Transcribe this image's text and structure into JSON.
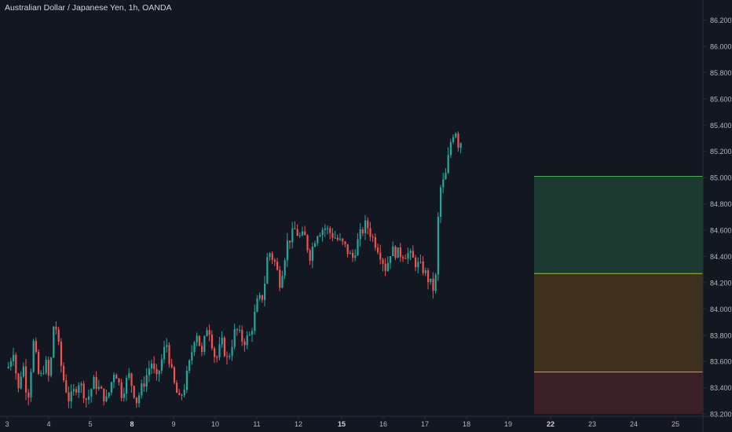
{
  "chart_title": "Australian Dollar / Japanese Yen, 1h, OANDA",
  "chart_data": {
    "type": "candlestick",
    "title": "Australian Dollar / Japanese Yen, 1h, OANDA",
    "symbol": "AUDJPY",
    "timeframe": "1h",
    "source": "OANDA",
    "ylim": [
      83.2,
      86.3
    ],
    "y_ticks": [
      "83.200",
      "83.400",
      "83.600",
      "83.800",
      "84.000",
      "84.200",
      "84.400",
      "84.600",
      "84.800",
      "85.000",
      "85.200",
      "85.400",
      "85.600",
      "85.800",
      "86.000",
      "86.200"
    ],
    "x_ticks": [
      {
        "label": "3",
        "bold": false
      },
      {
        "label": "4",
        "bold": false
      },
      {
        "label": "5",
        "bold": false
      },
      {
        "label": "8",
        "bold": true
      },
      {
        "label": "9",
        "bold": false
      },
      {
        "label": "10",
        "bold": false
      },
      {
        "label": "11",
        "bold": false
      },
      {
        "label": "12",
        "bold": false
      },
      {
        "label": "15",
        "bold": true
      },
      {
        "label": "16",
        "bold": false
      },
      {
        "label": "17",
        "bold": false
      },
      {
        "label": "18",
        "bold": false
      },
      {
        "label": "19",
        "bold": false
      },
      {
        "label": "22",
        "bold": true
      },
      {
        "label": "23",
        "bold": false
      },
      {
        "label": "24",
        "bold": false
      },
      {
        "label": "25",
        "bold": false
      }
    ],
    "price_path": [
      [
        0,
        83.55
      ],
      [
        0.06,
        83.7
      ],
      [
        0.1,
        83.35
      ],
      [
        0.15,
        83.6
      ],
      [
        0.2,
        83.3
      ],
      [
        0.26,
        83.75
      ],
      [
        0.32,
        83.45
      ],
      [
        0.38,
        83.6
      ],
      [
        0.42,
        83.45
      ],
      [
        0.47,
        83.95
      ],
      [
        0.55,
        83.5
      ],
      [
        0.62,
        83.3
      ],
      [
        0.72,
        83.45
      ],
      [
        0.8,
        83.3
      ],
      [
        0.87,
        83.45
      ],
      [
        1.0,
        83.3
      ],
      [
        1.08,
        83.55
      ],
      [
        1.15,
        83.35
      ],
      [
        1.22,
        83.5
      ],
      [
        1.3,
        83.3
      ],
      [
        1.38,
        83.45
      ],
      [
        1.45,
        83.6
      ],
      [
        1.5,
        83.45
      ],
      [
        1.55,
        83.6
      ],
      [
        1.6,
        83.75
      ],
      [
        1.67,
        83.45
      ],
      [
        1.73,
        83.3
      ],
      [
        1.78,
        83.4
      ],
      [
        1.84,
        83.6
      ],
      [
        1.9,
        83.85
      ],
      [
        1.96,
        83.65
      ],
      [
        2.02,
        83.9
      ],
      [
        2.1,
        83.6
      ],
      [
        2.16,
        83.75
      ],
      [
        2.22,
        83.6
      ],
      [
        2.3,
        83.85
      ],
      [
        2.38,
        83.75
      ],
      [
        2.45,
        83.8
      ],
      [
        2.52,
        84.05
      ],
      [
        2.58,
        84.1
      ],
      [
        2.63,
        84.45
      ],
      [
        2.7,
        84.35
      ],
      [
        2.75,
        84.2
      ],
      [
        2.82,
        84.5
      ],
      [
        2.9,
        84.6
      ],
      [
        2.95,
        84.55
      ],
      [
        3.0,
        84.55
      ],
      [
        3.05,
        84.4
      ],
      [
        3.12,
        84.58
      ],
      [
        3.2,
        84.62
      ],
      [
        3.3,
        84.55
      ],
      [
        3.4,
        84.48
      ],
      [
        3.48,
        84.38
      ],
      [
        3.55,
        84.55
      ],
      [
        3.62,
        84.65
      ],
      [
        3.68,
        84.55
      ],
      [
        3.75,
        84.45
      ],
      [
        3.82,
        84.3
      ],
      [
        3.87,
        84.45
      ],
      [
        3.95,
        84.42
      ],
      [
        4.05,
        84.42
      ],
      [
        4.12,
        84.35
      ],
      [
        4.2,
        84.3
      ],
      [
        4.25,
        84.22
      ],
      [
        4.3,
        84.15
      ],
      [
        4.32,
        84.2
      ],
      [
        4.36,
        84.9
      ],
      [
        4.42,
        85.0
      ],
      [
        4.48,
        85.3
      ],
      [
        4.52,
        85.38
      ],
      [
        4.56,
        85.22
      ],
      [
        4.6,
        85.36
      ]
    ],
    "zones": [
      {
        "from": 84.27,
        "to": 85.01,
        "fill": "#1c3a2f",
        "line": "#4caf50"
      },
      {
        "from": 83.52,
        "to": 84.27,
        "fill": "#3d311e",
        "line": "#9cbd3a"
      },
      {
        "from": 83.2,
        "to": 83.52,
        "fill": "#3b2027",
        "line": "#f59b00"
      }
    ],
    "colors": {
      "up": "#26a69a",
      "down": "#ef5350",
      "background": "#131722",
      "axis": "#2a2e39",
      "text": "#b2b5be"
    }
  }
}
